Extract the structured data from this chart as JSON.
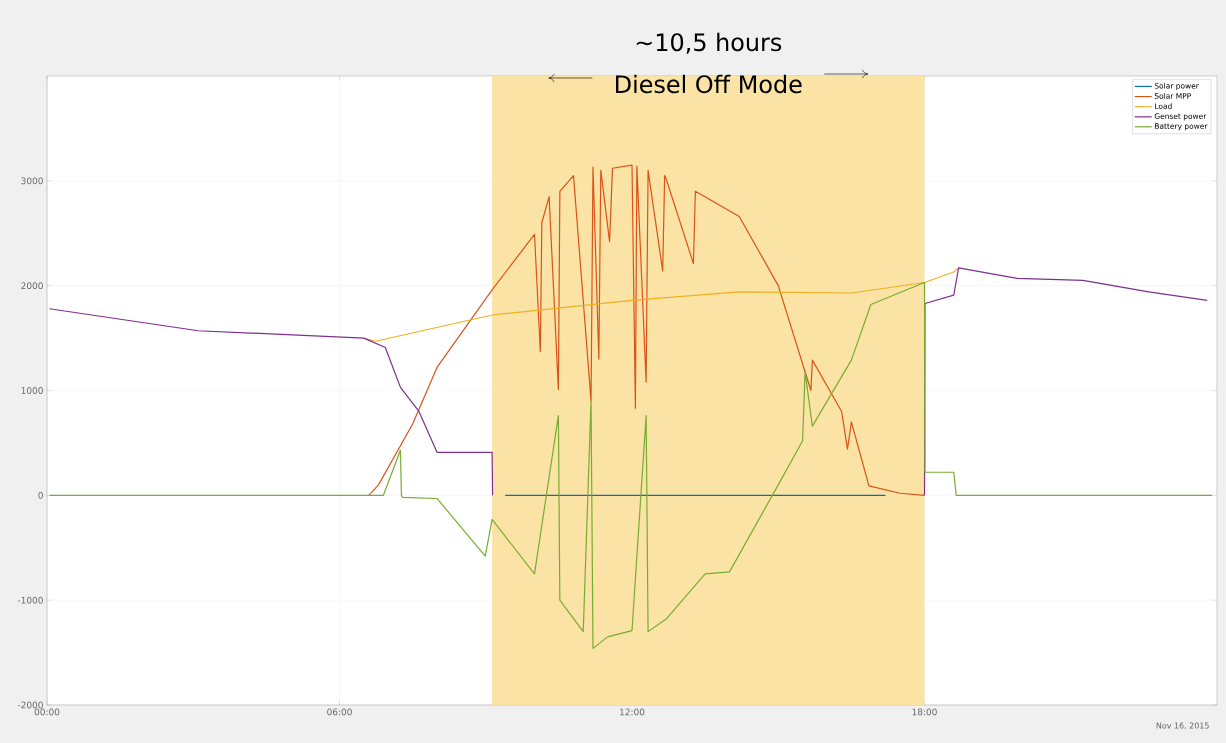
{
  "chart_data": {
    "type": "line",
    "series": [
      {
        "name": "Solar power",
        "color": "#0072bd",
        "x": [
          9.4,
          17.2
        ],
        "values": [
          0,
          0
        ]
      },
      {
        "name": "Solar MPP",
        "color": "#d95319",
        "x": [
          6.6,
          6.8,
          7.5,
          8.0,
          9.13,
          10.0,
          10.12,
          10.15,
          10.3,
          10.49,
          10.52,
          10.8,
          11.16,
          11.2,
          11.32,
          11.36,
          11.54,
          11.6,
          12.0,
          12.07,
          12.1,
          12.29,
          12.33,
          12.63,
          12.67,
          12.7,
          13.26,
          13.3,
          13.9,
          14.2,
          15.0,
          15.67,
          15.7,
          16.3,
          16.42,
          16.5,
          16.86,
          17.5,
          18.0
        ],
        "values": [
          0,
          100,
          680,
          1220,
          1960,
          2490,
          1370,
          2600,
          2850,
          1010,
          2900,
          3050,
          900,
          3130,
          1300,
          3100,
          2420,
          3120,
          3150,
          830,
          3140,
          1080,
          3100,
          2140,
          3050,
          3020,
          2210,
          2900,
          2740,
          2660,
          2000,
          1000,
          1290,
          800,
          440,
          700,
          90,
          20,
          0
        ]
      },
      {
        "name": "Load",
        "color": "#edb120",
        "x": [
          6.5,
          6.74,
          9.13,
          12.0,
          14.2,
          16.5,
          18.0,
          18.6,
          18.7
        ],
        "values": [
          1500,
          1470,
          1720,
          1860,
          1940,
          1930,
          2030,
          2130,
          2170
        ]
      },
      {
        "name": "Genset power",
        "color": "#7e2f8e",
        "x": [
          0.05,
          3.1,
          6.5,
          6.94,
          7.25,
          7.63,
          8.0,
          9.13,
          9.14,
          9.2,
          17.9,
          18.0,
          18.01,
          18.6,
          18.7,
          19.9,
          21.25,
          22.6,
          23.8
        ],
        "values": [
          1780,
          1570,
          1500,
          1410,
          1030,
          800,
          410,
          410,
          0,
          null,
          null,
          0,
          1830,
          1910,
          2170,
          2070,
          2050,
          1940,
          1860
        ]
      },
      {
        "name": "Battery power",
        "color": "#77ac30",
        "x": [
          0.05,
          6.9,
          7.25,
          7.27,
          7.3,
          8.0,
          8.99,
          9.13,
          10.0,
          10.49,
          10.52,
          11.0,
          11.16,
          11.2,
          11.5,
          12.0,
          12.29,
          12.33,
          12.7,
          13.5,
          14.0,
          15.0,
          15.5,
          15.55,
          15.7,
          16.5,
          16.9,
          18.0,
          18.01,
          18.6,
          18.65,
          23.9
        ],
        "values": [
          0,
          0,
          430,
          0,
          -20,
          -30,
          -580,
          -230,
          -750,
          760,
          -1000,
          -1300,
          900,
          -1460,
          -1350,
          -1290,
          760,
          -1300,
          -1180,
          -750,
          -730,
          100,
          520,
          1180,
          660,
          1290,
          1820,
          2030,
          220,
          220,
          0,
          0
        ]
      }
    ],
    "xlim": [
      0,
      24
    ],
    "ylim": [
      -2000,
      4000
    ],
    "xticks": [
      {
        "value": 0,
        "label": "00:00"
      },
      {
        "value": 6,
        "label": "06:00"
      },
      {
        "value": 12,
        "label": "12:00"
      },
      {
        "value": 18,
        "label": "18:00"
      }
    ],
    "yticks": [
      -2000,
      -1000,
      0,
      1000,
      2000,
      3000
    ],
    "grid": true,
    "legend": "top right",
    "bands": [
      {
        "axis": "x",
        "from": 9.13,
        "to": 18,
        "label": "Diesel Off Mode",
        "color": "#fbe3a6"
      }
    ],
    "annotations": [
      "~10,5 hours",
      "Nov 16, 2015"
    ]
  }
}
